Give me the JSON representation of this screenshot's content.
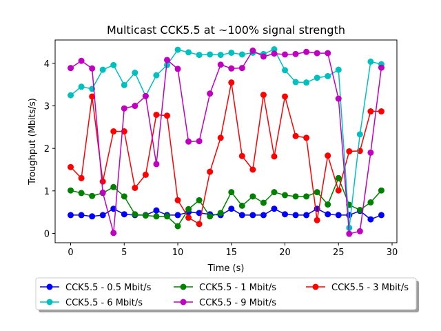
{
  "chart_data": {
    "type": "line",
    "title": "Multicast CCK5.5 at ~100% signal strength",
    "xlabel": "Time (s)",
    "ylabel": "Troughput (Mbits/s)",
    "xlim": [
      -1.45,
      30.45
    ],
    "ylim": [
      -0.22,
      4.55
    ],
    "xticks": [
      0,
      5,
      10,
      15,
      20,
      25,
      30
    ],
    "yticks": [
      0,
      1,
      2,
      3,
      4
    ],
    "grid": false,
    "legend_position": "bottom-center",
    "x": [
      0,
      1,
      2,
      3,
      4,
      5,
      6,
      7,
      8,
      9,
      10,
      11,
      12,
      13,
      14,
      15,
      16,
      17,
      18,
      19,
      20,
      21,
      22,
      23,
      24,
      25,
      26,
      27,
      28,
      29
    ],
    "series": [
      {
        "name": "CCK5.5 - 0.5 Mbit/s",
        "color": "#0000ff",
        "values": [
          0.43,
          0.43,
          0.4,
          0.43,
          0.58,
          0.45,
          0.43,
          0.43,
          0.54,
          0.43,
          0.43,
          0.5,
          0.48,
          0.45,
          0.43,
          0.58,
          0.43,
          0.43,
          0.43,
          0.58,
          0.45,
          0.43,
          0.43,
          0.58,
          0.45,
          0.43,
          0.43,
          0.53,
          0.33,
          0.43
        ]
      },
      {
        "name": "CCK5.5 - 1 Mbit/s",
        "color": "#008000",
        "values": [
          1.01,
          0.95,
          0.88,
          0.95,
          1.09,
          0.87,
          0.45,
          0.42,
          0.4,
          0.4,
          0.17,
          0.57,
          0.78,
          0.4,
          0.48,
          0.97,
          0.65,
          0.87,
          0.72,
          0.97,
          0.9,
          0.87,
          0.87,
          0.97,
          0.68,
          1.3,
          0.67,
          0.55,
          0.73,
          1.01
        ]
      },
      {
        "name": "CCK5.5 - 3 Mbit/s",
        "color": "#ff0000",
        "values": [
          1.56,
          1.3,
          3.22,
          1.22,
          2.4,
          2.4,
          1.07,
          1.38,
          2.79,
          2.77,
          0.78,
          0.37,
          0.22,
          1.45,
          2.25,
          3.55,
          1.82,
          1.5,
          3.26,
          1.81,
          3.22,
          2.29,
          2.25,
          0.31,
          1.83,
          1.01,
          1.93,
          1.94,
          2.87,
          2.87
        ]
      },
      {
        "name": "CCK5.5 - 6 Mbit/s",
        "color": "#00bfbf",
        "values": [
          3.25,
          3.45,
          3.4,
          3.85,
          3.96,
          3.49,
          3.78,
          3.23,
          3.72,
          3.96,
          4.32,
          4.26,
          4.2,
          4.21,
          4.2,
          4.25,
          4.21,
          4.25,
          4.22,
          4.33,
          3.84,
          3.56,
          3.55,
          3.66,
          3.7,
          3.85,
          0.13,
          2.33,
          4.04,
          3.98
        ]
      },
      {
        "name": "CCK5.5 - 9 Mbit/s",
        "color": "#bf00bf",
        "values": [
          3.89,
          4.06,
          3.88,
          0.96,
          0.01,
          2.94,
          3.0,
          3.23,
          1.63,
          4.08,
          3.87,
          2.16,
          2.17,
          3.29,
          3.97,
          3.88,
          3.89,
          4.3,
          4.16,
          4.23,
          4.21,
          4.22,
          4.27,
          4.24,
          4.24,
          3.17,
          -0.01,
          0.05,
          1.9,
          3.9
        ]
      }
    ]
  }
}
